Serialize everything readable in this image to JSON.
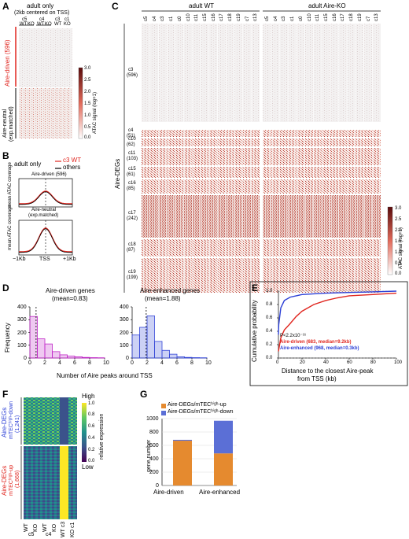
{
  "panelA": {
    "letter": "A",
    "title1": "adult only",
    "title2": "(2kb centered on TSS)",
    "col_top": [
      "c5",
      "c4",
      "c3",
      "c1"
    ],
    "col_bottom": [
      "WT",
      "KO",
      "WT",
      "KO",
      "WT",
      "KO"
    ],
    "group1": "Aire-driven (596)",
    "group2": "Aire-neutral",
    "group2b": "(exp.matched)",
    "colorbar_ticks": [
      "3.0",
      "2.5",
      "2.0",
      "1.5",
      "1.0",
      "0.5",
      "0.0"
    ],
    "colorbar_label": "ATAC signal (log+1)"
  },
  "panelB": {
    "letter": "B",
    "title": "adult only",
    "legend1": "c3 WT",
    "legend2": "others",
    "plot1_title": "Aire-driven (596)",
    "plot2_title1": "Aire-neutral",
    "plot2_title2": "(exp.matched)",
    "ylabel": "mean ATAC coverage",
    "xticks": [
      "−1Kb",
      "TSS",
      "+1Kb"
    ]
  },
  "panelC": {
    "letter": "C",
    "group1": "adult WT",
    "group2": "adult Aire-KO",
    "columns_wt": [
      "c5",
      "c4",
      "c3",
      "c1",
      "c0",
      "c10",
      "c11",
      "c15",
      "c16",
      "c17",
      "c18",
      "c19",
      "c7",
      "c13"
    ],
    "columns_ko": [
      "c5",
      "c4",
      "c3",
      "c1",
      "c0",
      "c10",
      "c11",
      "c15",
      "c16",
      "c17",
      "c18",
      "c19",
      "c7",
      "c13"
    ],
    "ylabel": "Aire-DEGs",
    "rows": [
      {
        "name": "c3",
        "count": "(596)"
      },
      {
        "name": "c4",
        "count": "(51)"
      },
      {
        "name": "c10",
        "count": "(62)"
      },
      {
        "name": "c11",
        "count": "(103)"
      },
      {
        "name": "c15",
        "count": "(61)"
      },
      {
        "name": "c16",
        "count": "(85)"
      },
      {
        "name": "c17",
        "count": "(242)"
      },
      {
        "name": "c18",
        "count": "(87)"
      },
      {
        "name": "c19",
        "count": "(199)"
      }
    ],
    "colorbar_ticks": [
      "3.0",
      "2.5",
      "2.0",
      "1.5",
      "1.0",
      "0.5",
      "0.0"
    ],
    "colorbar_label": "ATAC signal (log+1)"
  },
  "panelD": {
    "letter": "D",
    "title1": "Aire-driven genes",
    "mean1": "(mean=0.83)",
    "title2": "Aire-enhanced genes",
    "mean2": "(mean=1.88)",
    "ylabel": "Frequency",
    "xlabel": "Number of Aire peaks around TSS",
    "yticks": [
      "0",
      "100",
      "200",
      "300",
      "400"
    ],
    "xticks": [
      "0",
      "2",
      "4",
      "6",
      "8",
      "10"
    ]
  },
  "panelE": {
    "letter": "E",
    "ylabel": "Cumulative probability",
    "xlabel1": "Distance to the closest Aire-peak",
    "xlabel2": "from TSS (kb)",
    "yticks": [
      "0.0",
      "0.2",
      "0.4",
      "0.6",
      "0.8",
      "1.0"
    ],
    "xticks": [
      "0",
      "20",
      "40",
      "60",
      "80",
      "100"
    ],
    "pval": "P<2.2x10⁻¹⁶",
    "legend_driven": "Aire-driven (683, median=9.2kb)",
    "legend_enhanced": "Aire-enhanced (968, median=0.3kb)"
  },
  "panelF": {
    "letter": "F",
    "group1a": "Aire-DEGs",
    "group1b": "mTECʰⁱᵍʰ-down",
    "group1c": "(1,241)",
    "group2a": "Aire-DEGs",
    "group2b": "mTECʰⁱᵍʰ-up",
    "group2c": "(1,668)",
    "columns": [
      "WT",
      "KO",
      "WT",
      "KO",
      "WT c3",
      "KO c1"
    ],
    "col_groups": [
      "c5",
      "c4"
    ],
    "cbar_high": "High",
    "cbar_low": "Low",
    "cbar_ticks": [
      "1.0",
      "0.8",
      "0.6",
      "0.4",
      "0.2",
      "0.0"
    ],
    "cbar_label": "relative expression"
  },
  "panelG": {
    "letter": "G",
    "legend_up": "Aire-DEGs/mTECʰⁱᵍʰ-up",
    "legend_down": "Aire-DEGs/mTECʰⁱᵍʰ-down",
    "ylabel": "gene number",
    "yticks": [
      "0",
      "200",
      "400",
      "600",
      "800",
      "1000"
    ],
    "categories": [
      "Aire-driven",
      "Aire-enhanced"
    ]
  },
  "chart_data": [
    {
      "type": "bar",
      "title": "Aire-driven genes",
      "categories": [
        "0",
        "1",
        "2",
        "3",
        "4",
        "5",
        "6",
        "7",
        "8",
        "9"
      ],
      "values": [
        325,
        150,
        110,
        50,
        25,
        15,
        10,
        5,
        3,
        2
      ],
      "mean": 0.83,
      "xlabel": "Number of Aire peaks around TSS",
      "ylabel": "Frequency",
      "ylim": [
        0,
        400
      ],
      "color": "#c026c7"
    },
    {
      "type": "bar",
      "title": "Aire-enhanced genes",
      "categories": [
        "0",
        "1",
        "2",
        "3",
        "4",
        "5",
        "6",
        "7",
        "8",
        "9"
      ],
      "values": [
        180,
        240,
        330,
        130,
        60,
        30,
        10,
        5,
        3,
        2
      ],
      "mean": 1.88,
      "xlabel": "Number of Aire peaks around TSS",
      "ylabel": "Frequency",
      "ylim": [
        0,
        400
      ],
      "color": "#3446d8"
    },
    {
      "type": "line",
      "xlabel": "Distance to the closest Aire-peak from TSS (kb)",
      "ylabel": "Cumulative probability",
      "xlim": [
        0,
        100
      ],
      "ylim": [
        0,
        1.0
      ],
      "series": [
        {
          "name": "Aire-driven (683, median=9.2kb)",
          "color": "#e0261f",
          "x": [
            0,
            2,
            5,
            9.2,
            15,
            20,
            30,
            40,
            50,
            60,
            80,
            100
          ],
          "y": [
            0.1,
            0.3,
            0.42,
            0.5,
            0.62,
            0.7,
            0.8,
            0.86,
            0.9,
            0.93,
            0.95,
            0.97
          ]
        },
        {
          "name": "Aire-enhanced (968, median=0.3kb)",
          "color": "#2b3fd6",
          "x": [
            0,
            0.3,
            2,
            5,
            10,
            20,
            40,
            60,
            80,
            100
          ],
          "y": [
            0.35,
            0.5,
            0.75,
            0.86,
            0.91,
            0.95,
            0.97,
            0.98,
            0.99,
            1.0
          ]
        }
      ]
    },
    {
      "type": "bar",
      "categories": [
        "Aire-driven",
        "Aire-enhanced"
      ],
      "series": [
        {
          "name": "Aire-DEGs/mTECʰⁱᵍʰ-up",
          "color": "#e58a2f",
          "values": [
            670,
            480
          ]
        },
        {
          "name": "Aire-DEGs/mTECʰⁱᵍʰ-down",
          "color": "#5b6fd6",
          "values": [
            13,
            488
          ]
        }
      ],
      "ylabel": "gene number",
      "ylim": [
        0,
        1000
      ]
    }
  ]
}
